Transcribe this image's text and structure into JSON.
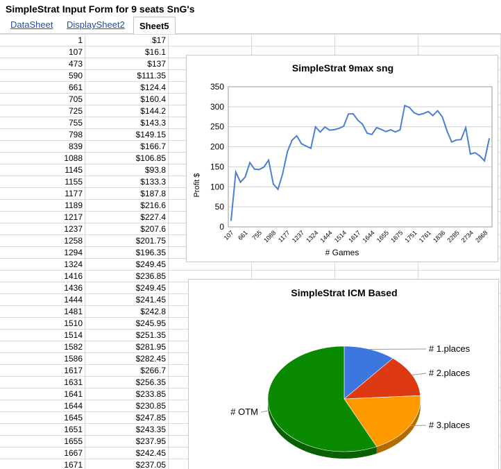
{
  "window": {
    "title": "SimpleStrat Input Form for 9 seats SnG's"
  },
  "tabs": [
    {
      "label": "DataSheet",
      "active": false
    },
    {
      "label": "DisplaySheet2",
      "active": false
    },
    {
      "label": "Sheet5",
      "active": true
    }
  ],
  "table": {
    "rows": [
      [
        "1",
        "$17"
      ],
      [
        "107",
        "$16.1"
      ],
      [
        "473",
        "$137"
      ],
      [
        "590",
        "$111.35"
      ],
      [
        "661",
        "$124.4"
      ],
      [
        "705",
        "$160.4"
      ],
      [
        "725",
        "$144.2"
      ],
      [
        "755",
        "$143.3"
      ],
      [
        "798",
        "$149.15"
      ],
      [
        "839",
        "$166.7"
      ],
      [
        "1088",
        "$106.85"
      ],
      [
        "1145",
        "$93.8"
      ],
      [
        "1155",
        "$133.3"
      ],
      [
        "1177",
        "$187.8"
      ],
      [
        "1189",
        "$216.6"
      ],
      [
        "1217",
        "$227.4"
      ],
      [
        "1237",
        "$207.6"
      ],
      [
        "1258",
        "$201.75"
      ],
      [
        "1294",
        "$196.35"
      ],
      [
        "1324",
        "$249.45"
      ],
      [
        "1416",
        "$236.85"
      ],
      [
        "1436",
        "$249.45"
      ],
      [
        "1444",
        "$241.45"
      ],
      [
        "1481",
        "$242.8"
      ],
      [
        "1510",
        "$245.95"
      ],
      [
        "1514",
        "$251.35"
      ],
      [
        "1582",
        "$281.95"
      ],
      [
        "1586",
        "$282.45"
      ],
      [
        "1617",
        "$266.7"
      ],
      [
        "1631",
        "$256.35"
      ],
      [
        "1641",
        "$233.85"
      ],
      [
        "1644",
        "$230.85"
      ],
      [
        "1645",
        "$247.85"
      ],
      [
        "1651",
        "$243.35"
      ],
      [
        "1655",
        "$237.95"
      ],
      [
        "1667",
        "$242.45"
      ],
      [
        "1671",
        "$237.05"
      ]
    ]
  },
  "chart_data": [
    {
      "type": "line",
      "title": "SimpleStrat 9max sng",
      "xlabel": "# Games",
      "ylabel": "Profit $",
      "ylim": [
        0,
        350
      ],
      "yticks": [
        0,
        50,
        100,
        150,
        200,
        250,
        300,
        350
      ],
      "grid": true,
      "legend": "none",
      "color": "#4a7fd4",
      "x_tick_labels": [
        "107",
        "661",
        "755",
        "1088",
        "1177",
        "1237",
        "1324",
        "1444",
        "1514",
        "1617",
        "1644",
        "1655",
        "1675",
        "1751",
        "1761",
        "1836",
        "2285",
        "2734",
        "2868"
      ],
      "values": [
        16.1,
        137,
        111.35,
        124.4,
        160.4,
        144.2,
        143.3,
        149.15,
        166.7,
        106.85,
        93.8,
        133.3,
        187.8,
        216.6,
        227.4,
        207.6,
        201.75,
        196.35,
        249.45,
        236.85,
        249.45,
        241.45,
        242.8,
        245.95,
        251.35,
        281.95,
        282.45,
        266.7,
        256.35,
        233.85,
        230.85,
        247.85,
        243.35,
        237.95,
        242.45,
        237.05,
        242,
        303,
        298,
        285,
        280,
        283,
        288,
        278,
        290,
        275,
        240,
        212,
        217,
        218,
        248,
        182,
        185,
        177,
        165,
        220
      ]
    },
    {
      "type": "pie",
      "title": "SimpleStrat ICM Based",
      "legend": "labels-outside",
      "slices": [
        {
          "label": "# 1.places",
          "value": 11,
          "color": "#3c77e0"
        },
        {
          "label": "# 2.places",
          "value": 13,
          "color": "#dd3a14"
        },
        {
          "label": "# 3.places",
          "value": 19,
          "color": "#ff9900"
        },
        {
          "label": "# OTM",
          "value": 57,
          "color": "#0a8a00"
        }
      ]
    }
  ]
}
